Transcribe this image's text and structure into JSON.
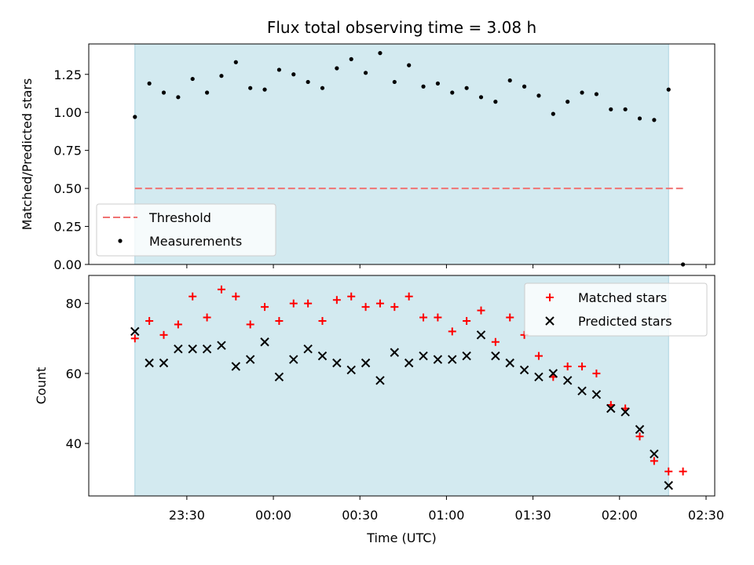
{
  "colors": {
    "observing_band": "#d3eaf0",
    "band_edge": "#a9d3e0",
    "threshold": "#f07373",
    "measurements": "#000000",
    "matched": "#ff0000",
    "predicted": "#000000"
  },
  "chart_data": [
    {
      "type": "scatter",
      "title": "Flux total observing time = 3.08 h",
      "xlabel": "",
      "ylabel": "Matched/Predicted stars",
      "ylim": [
        0,
        1.45
      ],
      "y_ticks": [
        {
          "value": 0.0,
          "label": "0.00"
        },
        {
          "value": 0.25,
          "label": "0.25"
        },
        {
          "value": 0.5,
          "label": "0.50"
        },
        {
          "value": 0.75,
          "label": "0.75"
        },
        {
          "value": 1.0,
          "label": "1.00"
        },
        {
          "value": 1.25,
          "label": "1.25"
        }
      ],
      "legend_position": "bottom-left",
      "observing_window": {
        "start": "23:12",
        "end": "02:17"
      },
      "threshold": {
        "name": "Threshold",
        "value": 0.5,
        "x_start": "23:12",
        "x_end": "02:22"
      },
      "series": [
        {
          "name": "Measurements",
          "points": [
            {
              "x": "23:12",
              "y": 0.97
            },
            {
              "x": "23:17",
              "y": 1.19
            },
            {
              "x": "23:22",
              "y": 1.13
            },
            {
              "x": "23:27",
              "y": 1.1
            },
            {
              "x": "23:32",
              "y": 1.22
            },
            {
              "x": "23:37",
              "y": 1.13
            },
            {
              "x": "23:42",
              "y": 1.24
            },
            {
              "x": "23:47",
              "y": 1.33
            },
            {
              "x": "23:52",
              "y": 1.16
            },
            {
              "x": "23:57",
              "y": 1.15
            },
            {
              "x": "00:02",
              "y": 1.28
            },
            {
              "x": "00:07",
              "y": 1.25
            },
            {
              "x": "00:12",
              "y": 1.2
            },
            {
              "x": "00:17",
              "y": 1.16
            },
            {
              "x": "00:22",
              "y": 1.29
            },
            {
              "x": "00:27",
              "y": 1.35
            },
            {
              "x": "00:32",
              "y": 1.26
            },
            {
              "x": "00:37",
              "y": 1.39
            },
            {
              "x": "00:42",
              "y": 1.2
            },
            {
              "x": "00:47",
              "y": 1.31
            },
            {
              "x": "00:52",
              "y": 1.17
            },
            {
              "x": "00:57",
              "y": 1.19
            },
            {
              "x": "01:02",
              "y": 1.13
            },
            {
              "x": "01:07",
              "y": 1.16
            },
            {
              "x": "01:12",
              "y": 1.1
            },
            {
              "x": "01:17",
              "y": 1.07
            },
            {
              "x": "01:22",
              "y": 1.21
            },
            {
              "x": "01:27",
              "y": 1.17
            },
            {
              "x": "01:32",
              "y": 1.11
            },
            {
              "x": "01:37",
              "y": 0.99
            },
            {
              "x": "01:42",
              "y": 1.07
            },
            {
              "x": "01:47",
              "y": 1.13
            },
            {
              "x": "01:52",
              "y": 1.12
            },
            {
              "x": "01:57",
              "y": 1.02
            },
            {
              "x": "02:02",
              "y": 1.02
            },
            {
              "x": "02:07",
              "y": 0.96
            },
            {
              "x": "02:12",
              "y": 0.95
            },
            {
              "x": "02:17",
              "y": 1.15
            },
            {
              "x": "02:22",
              "y": 0.0
            }
          ]
        }
      ]
    },
    {
      "type": "scatter",
      "title": "",
      "xlabel": "Time (UTC)",
      "ylabel": "Count",
      "ylim": [
        25,
        88
      ],
      "y_ticks": [
        {
          "value": 40,
          "label": "40"
        },
        {
          "value": 60,
          "label": "60"
        },
        {
          "value": 80,
          "label": "80"
        }
      ],
      "x_ticks": [
        {
          "value": "23:30",
          "label": "23:30"
        },
        {
          "value": "00:00",
          "label": "00:00"
        },
        {
          "value": "00:30",
          "label": "00:30"
        },
        {
          "value": "01:00",
          "label": "01:00"
        },
        {
          "value": "01:30",
          "label": "01:30"
        },
        {
          "value": "02:00",
          "label": "02:00"
        },
        {
          "value": "02:30",
          "label": "02:30"
        }
      ],
      "legend_position": "top-right",
      "observing_window": {
        "start": "23:12",
        "end": "02:17"
      },
      "series": [
        {
          "name": "Matched stars",
          "points": [
            {
              "x": "23:12",
              "y": 70
            },
            {
              "x": "23:17",
              "y": 75
            },
            {
              "x": "23:22",
              "y": 71
            },
            {
              "x": "23:27",
              "y": 74
            },
            {
              "x": "23:32",
              "y": 82
            },
            {
              "x": "23:37",
              "y": 76
            },
            {
              "x": "23:42",
              "y": 84
            },
            {
              "x": "23:47",
              "y": 82
            },
            {
              "x": "23:52",
              "y": 74
            },
            {
              "x": "23:57",
              "y": 79
            },
            {
              "x": "00:02",
              "y": 75
            },
            {
              "x": "00:07",
              "y": 80
            },
            {
              "x": "00:12",
              "y": 80
            },
            {
              "x": "00:17",
              "y": 75
            },
            {
              "x": "00:22",
              "y": 81
            },
            {
              "x": "00:27",
              "y": 82
            },
            {
              "x": "00:32",
              "y": 79
            },
            {
              "x": "00:37",
              "y": 80
            },
            {
              "x": "00:42",
              "y": 79
            },
            {
              "x": "00:47",
              "y": 82
            },
            {
              "x": "00:52",
              "y": 76
            },
            {
              "x": "00:57",
              "y": 76
            },
            {
              "x": "01:02",
              "y": 72
            },
            {
              "x": "01:07",
              "y": 75
            },
            {
              "x": "01:12",
              "y": 78
            },
            {
              "x": "01:17",
              "y": 69
            },
            {
              "x": "01:22",
              "y": 76
            },
            {
              "x": "01:27",
              "y": 71
            },
            {
              "x": "01:32",
              "y": 65
            },
            {
              "x": "01:37",
              "y": 59
            },
            {
              "x": "01:42",
              "y": 62
            },
            {
              "x": "01:47",
              "y": 62
            },
            {
              "x": "01:52",
              "y": 60
            },
            {
              "x": "01:57",
              "y": 51
            },
            {
              "x": "02:02",
              "y": 50
            },
            {
              "x": "02:07",
              "y": 42
            },
            {
              "x": "02:12",
              "y": 35
            },
            {
              "x": "02:17",
              "y": 32
            },
            {
              "x": "02:22",
              "y": 32
            }
          ]
        },
        {
          "name": "Predicted stars",
          "points": [
            {
              "x": "23:12",
              "y": 72
            },
            {
              "x": "23:17",
              "y": 63
            },
            {
              "x": "23:22",
              "y": 63
            },
            {
              "x": "23:27",
              "y": 67
            },
            {
              "x": "23:32",
              "y": 67
            },
            {
              "x": "23:37",
              "y": 67
            },
            {
              "x": "23:42",
              "y": 68
            },
            {
              "x": "23:47",
              "y": 62
            },
            {
              "x": "23:52",
              "y": 64
            },
            {
              "x": "23:57",
              "y": 69
            },
            {
              "x": "00:02",
              "y": 59
            },
            {
              "x": "00:07",
              "y": 64
            },
            {
              "x": "00:12",
              "y": 67
            },
            {
              "x": "00:17",
              "y": 65
            },
            {
              "x": "00:22",
              "y": 63
            },
            {
              "x": "00:27",
              "y": 61
            },
            {
              "x": "00:32",
              "y": 63
            },
            {
              "x": "00:37",
              "y": 58
            },
            {
              "x": "00:42",
              "y": 66
            },
            {
              "x": "00:47",
              "y": 63
            },
            {
              "x": "00:52",
              "y": 65
            },
            {
              "x": "00:57",
              "y": 64
            },
            {
              "x": "01:02",
              "y": 64
            },
            {
              "x": "01:07",
              "y": 65
            },
            {
              "x": "01:12",
              "y": 71
            },
            {
              "x": "01:17",
              "y": 65
            },
            {
              "x": "01:22",
              "y": 63
            },
            {
              "x": "01:27",
              "y": 61
            },
            {
              "x": "01:32",
              "y": 59
            },
            {
              "x": "01:37",
              "y": 60
            },
            {
              "x": "01:42",
              "y": 58
            },
            {
              "x": "01:47",
              "y": 55
            },
            {
              "x": "01:52",
              "y": 54
            },
            {
              "x": "01:57",
              "y": 50
            },
            {
              "x": "02:02",
              "y": 49
            },
            {
              "x": "02:07",
              "y": 44
            },
            {
              "x": "02:12",
              "y": 37
            },
            {
              "x": "02:17",
              "y": 28
            }
          ]
        }
      ]
    }
  ]
}
